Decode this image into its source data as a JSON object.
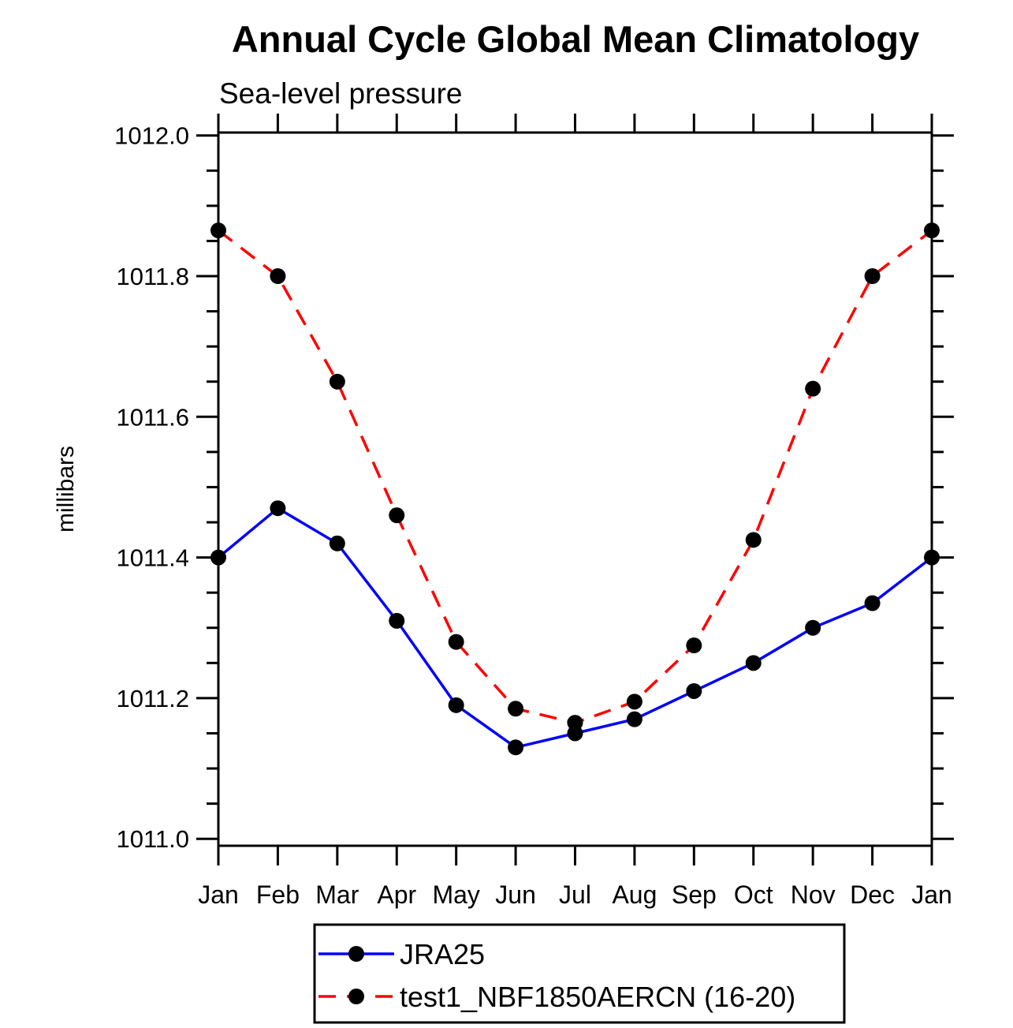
{
  "title": "Annual Cycle Global Mean Climatology",
  "subtitle": "Sea-level pressure",
  "ylabel": "millibars",
  "chart_data": {
    "type": "line",
    "title": "Annual Cycle Global Mean Climatology",
    "subtitle": "Sea-level pressure",
    "ylabel": "millibars",
    "xlabel": "",
    "categories": [
      "Jan",
      "Feb",
      "Mar",
      "Apr",
      "May",
      "Jun",
      "Jul",
      "Aug",
      "Sep",
      "Oct",
      "Nov",
      "Dec",
      "Jan"
    ],
    "series": [
      {
        "name": "JRA25",
        "color": "#0000ff",
        "line_style": "solid",
        "marker": "filled-circle",
        "marker_color": "#000000",
        "values": [
          1011.4,
          1011.47,
          1011.42,
          1011.31,
          1011.19,
          1011.13,
          1011.15,
          1011.17,
          1011.21,
          1011.25,
          1011.3,
          1011.335,
          1011.4
        ]
      },
      {
        "name": "test1_NBF1850AERCN (16-20)",
        "color": "#ff0000",
        "line_style": "dashed",
        "marker": "filled-circle",
        "marker_color": "#000000",
        "values": [
          1011.865,
          1011.8,
          1011.65,
          1011.46,
          1011.28,
          1011.185,
          1011.165,
          1011.195,
          1011.275,
          1011.425,
          1011.64,
          1011.8,
          1011.865
        ]
      }
    ],
    "ylim": [
      1011.0,
      1012.0
    ],
    "ytick_major_step": 0.2,
    "ytick_minor_step": 0.05,
    "ytick_labels": [
      "1012.0",
      "1011.8",
      "1011.6",
      "1011.4",
      "1011.2",
      "1011.0"
    ],
    "grid": false,
    "legend_position": "bottom",
    "frame": "box-with-outward-ticks"
  }
}
